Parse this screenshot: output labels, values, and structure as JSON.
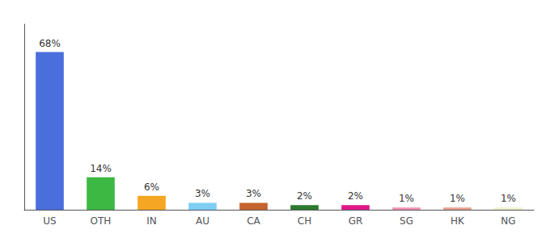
{
  "chart_data": {
    "type": "bar",
    "categories": [
      "US",
      "OTH",
      "IN",
      "AU",
      "CA",
      "CH",
      "GR",
      "SG",
      "HK",
      "NG"
    ],
    "values": [
      68,
      14,
      6,
      3,
      3,
      2,
      2,
      1,
      1,
      1
    ],
    "value_labels": [
      "68%",
      "14%",
      "6%",
      "3%",
      "3%",
      "2%",
      "2%",
      "1%",
      "1%",
      "1%"
    ],
    "colors": [
      "#4a6edb",
      "#3cb843",
      "#f5a623",
      "#7ecef4",
      "#c4622d",
      "#2d7a2d",
      "#e0188a",
      "#f48fb1",
      "#e8a090",
      "#f0f0cc"
    ],
    "ylim": [
      0,
      80
    ],
    "grid": false,
    "data_labels": true,
    "tick_labels": "x"
  }
}
